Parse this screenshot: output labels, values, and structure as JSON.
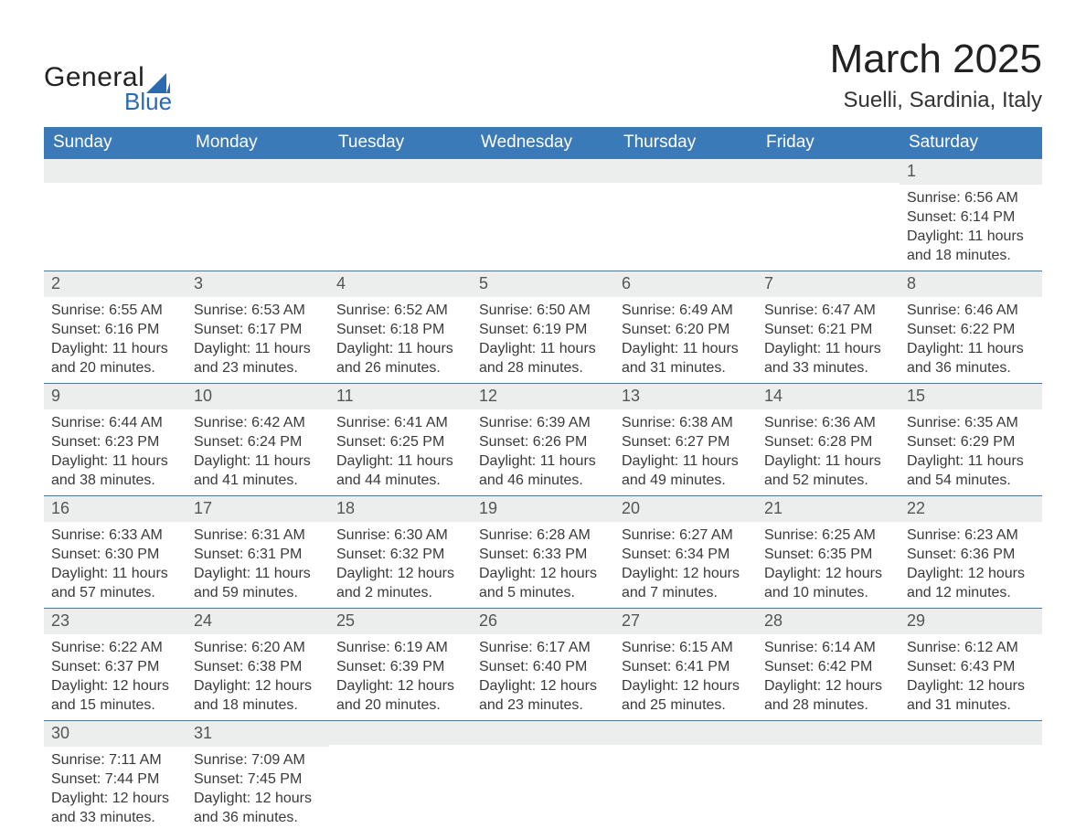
{
  "branding": {
    "word1": "General",
    "word2": "Blue",
    "sail_color": "#2a6bb0",
    "word1_color": "#222222",
    "word2_color": "#2a6bb0"
  },
  "header": {
    "month_title": "March 2025",
    "location": "Suelli, Sardinia, Italy"
  },
  "styling": {
    "header_row_bg": "#3a7ab8",
    "header_row_text": "#ffffff",
    "daynum_bg": "#eceded",
    "daynum_text": "#555555",
    "body_text": "#3a3a3a",
    "row_divider": "#3a7ab8",
    "page_bg": "#ffffff",
    "dayname_fontsize": 19,
    "daynum_fontsize": 18,
    "body_fontsize": 16,
    "title_fontsize": 44,
    "location_fontsize": 24
  },
  "day_names": [
    "Sunday",
    "Monday",
    "Tuesday",
    "Wednesday",
    "Thursday",
    "Friday",
    "Saturday"
  ],
  "weeks": [
    [
      {
        "num": "",
        "lines": [
          "",
          "",
          "",
          ""
        ]
      },
      {
        "num": "",
        "lines": [
          "",
          "",
          "",
          ""
        ]
      },
      {
        "num": "",
        "lines": [
          "",
          "",
          "",
          ""
        ]
      },
      {
        "num": "",
        "lines": [
          "",
          "",
          "",
          ""
        ]
      },
      {
        "num": "",
        "lines": [
          "",
          "",
          "",
          ""
        ]
      },
      {
        "num": "",
        "lines": [
          "",
          "",
          "",
          ""
        ]
      },
      {
        "num": "1",
        "lines": [
          "Sunrise: 6:56 AM",
          "Sunset: 6:14 PM",
          "Daylight: 11 hours",
          "and 18 minutes."
        ]
      }
    ],
    [
      {
        "num": "2",
        "lines": [
          "Sunrise: 6:55 AM",
          "Sunset: 6:16 PM",
          "Daylight: 11 hours",
          "and 20 minutes."
        ]
      },
      {
        "num": "3",
        "lines": [
          "Sunrise: 6:53 AM",
          "Sunset: 6:17 PM",
          "Daylight: 11 hours",
          "and 23 minutes."
        ]
      },
      {
        "num": "4",
        "lines": [
          "Sunrise: 6:52 AM",
          "Sunset: 6:18 PM",
          "Daylight: 11 hours",
          "and 26 minutes."
        ]
      },
      {
        "num": "5",
        "lines": [
          "Sunrise: 6:50 AM",
          "Sunset: 6:19 PM",
          "Daylight: 11 hours",
          "and 28 minutes."
        ]
      },
      {
        "num": "6",
        "lines": [
          "Sunrise: 6:49 AM",
          "Sunset: 6:20 PM",
          "Daylight: 11 hours",
          "and 31 minutes."
        ]
      },
      {
        "num": "7",
        "lines": [
          "Sunrise: 6:47 AM",
          "Sunset: 6:21 PM",
          "Daylight: 11 hours",
          "and 33 minutes."
        ]
      },
      {
        "num": "8",
        "lines": [
          "Sunrise: 6:46 AM",
          "Sunset: 6:22 PM",
          "Daylight: 11 hours",
          "and 36 minutes."
        ]
      }
    ],
    [
      {
        "num": "9",
        "lines": [
          "Sunrise: 6:44 AM",
          "Sunset: 6:23 PM",
          "Daylight: 11 hours",
          "and 38 minutes."
        ]
      },
      {
        "num": "10",
        "lines": [
          "Sunrise: 6:42 AM",
          "Sunset: 6:24 PM",
          "Daylight: 11 hours",
          "and 41 minutes."
        ]
      },
      {
        "num": "11",
        "lines": [
          "Sunrise: 6:41 AM",
          "Sunset: 6:25 PM",
          "Daylight: 11 hours",
          "and 44 minutes."
        ]
      },
      {
        "num": "12",
        "lines": [
          "Sunrise: 6:39 AM",
          "Sunset: 6:26 PM",
          "Daylight: 11 hours",
          "and 46 minutes."
        ]
      },
      {
        "num": "13",
        "lines": [
          "Sunrise: 6:38 AM",
          "Sunset: 6:27 PM",
          "Daylight: 11 hours",
          "and 49 minutes."
        ]
      },
      {
        "num": "14",
        "lines": [
          "Sunrise: 6:36 AM",
          "Sunset: 6:28 PM",
          "Daylight: 11 hours",
          "and 52 minutes."
        ]
      },
      {
        "num": "15",
        "lines": [
          "Sunrise: 6:35 AM",
          "Sunset: 6:29 PM",
          "Daylight: 11 hours",
          "and 54 minutes."
        ]
      }
    ],
    [
      {
        "num": "16",
        "lines": [
          "Sunrise: 6:33 AM",
          "Sunset: 6:30 PM",
          "Daylight: 11 hours",
          "and 57 minutes."
        ]
      },
      {
        "num": "17",
        "lines": [
          "Sunrise: 6:31 AM",
          "Sunset: 6:31 PM",
          "Daylight: 11 hours",
          "and 59 minutes."
        ]
      },
      {
        "num": "18",
        "lines": [
          "Sunrise: 6:30 AM",
          "Sunset: 6:32 PM",
          "Daylight: 12 hours",
          "and 2 minutes."
        ]
      },
      {
        "num": "19",
        "lines": [
          "Sunrise: 6:28 AM",
          "Sunset: 6:33 PM",
          "Daylight: 12 hours",
          "and 5 minutes."
        ]
      },
      {
        "num": "20",
        "lines": [
          "Sunrise: 6:27 AM",
          "Sunset: 6:34 PM",
          "Daylight: 12 hours",
          "and 7 minutes."
        ]
      },
      {
        "num": "21",
        "lines": [
          "Sunrise: 6:25 AM",
          "Sunset: 6:35 PM",
          "Daylight: 12 hours",
          "and 10 minutes."
        ]
      },
      {
        "num": "22",
        "lines": [
          "Sunrise: 6:23 AM",
          "Sunset: 6:36 PM",
          "Daylight: 12 hours",
          "and 12 minutes."
        ]
      }
    ],
    [
      {
        "num": "23",
        "lines": [
          "Sunrise: 6:22 AM",
          "Sunset: 6:37 PM",
          "Daylight: 12 hours",
          "and 15 minutes."
        ]
      },
      {
        "num": "24",
        "lines": [
          "Sunrise: 6:20 AM",
          "Sunset: 6:38 PM",
          "Daylight: 12 hours",
          "and 18 minutes."
        ]
      },
      {
        "num": "25",
        "lines": [
          "Sunrise: 6:19 AM",
          "Sunset: 6:39 PM",
          "Daylight: 12 hours",
          "and 20 minutes."
        ]
      },
      {
        "num": "26",
        "lines": [
          "Sunrise: 6:17 AM",
          "Sunset: 6:40 PM",
          "Daylight: 12 hours",
          "and 23 minutes."
        ]
      },
      {
        "num": "27",
        "lines": [
          "Sunrise: 6:15 AM",
          "Sunset: 6:41 PM",
          "Daylight: 12 hours",
          "and 25 minutes."
        ]
      },
      {
        "num": "28",
        "lines": [
          "Sunrise: 6:14 AM",
          "Sunset: 6:42 PM",
          "Daylight: 12 hours",
          "and 28 minutes."
        ]
      },
      {
        "num": "29",
        "lines": [
          "Sunrise: 6:12 AM",
          "Sunset: 6:43 PM",
          "Daylight: 12 hours",
          "and 31 minutes."
        ]
      }
    ],
    [
      {
        "num": "30",
        "lines": [
          "Sunrise: 7:11 AM",
          "Sunset: 7:44 PM",
          "Daylight: 12 hours",
          "and 33 minutes."
        ]
      },
      {
        "num": "31",
        "lines": [
          "Sunrise: 7:09 AM",
          "Sunset: 7:45 PM",
          "Daylight: 12 hours",
          "and 36 minutes."
        ]
      },
      {
        "num": "",
        "lines": [
          "",
          "",
          "",
          ""
        ]
      },
      {
        "num": "",
        "lines": [
          "",
          "",
          "",
          ""
        ]
      },
      {
        "num": "",
        "lines": [
          "",
          "",
          "",
          ""
        ]
      },
      {
        "num": "",
        "lines": [
          "",
          "",
          "",
          ""
        ]
      },
      {
        "num": "",
        "lines": [
          "",
          "",
          "",
          ""
        ]
      }
    ]
  ]
}
